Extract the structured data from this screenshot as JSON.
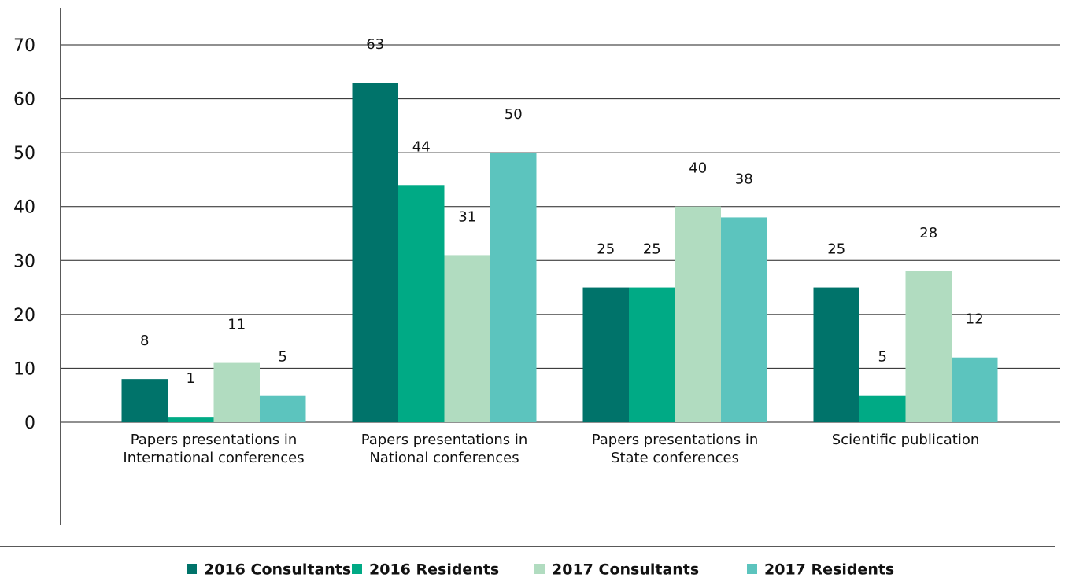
{
  "chart_data": {
    "type": "bar",
    "categories": [
      "Papers presentations in International conferences",
      "Papers presentations in National conferences",
      "Papers presentations in State conferences",
      "Scientific publication"
    ],
    "series": [
      {
        "name": "2016 Consultants",
        "color": "#00736a",
        "values": [
          8,
          63,
          25,
          25
        ]
      },
      {
        "name": "2016 Residents",
        "color": "#00aa85",
        "values": [
          1,
          44,
          25,
          5
        ]
      },
      {
        "name": "2017 Consultants",
        "color": "#b1dcc0",
        "values": [
          11,
          31,
          40,
          28
        ]
      },
      {
        "name": "2017 Residents",
        "color": "#5cc4be",
        "values": [
          5,
          50,
          38,
          12
        ]
      }
    ],
    "ylim": [
      0,
      70
    ],
    "yticks": [
      0,
      10,
      20,
      30,
      40,
      50,
      60,
      70
    ],
    "grid": true,
    "legend": "bottom"
  }
}
